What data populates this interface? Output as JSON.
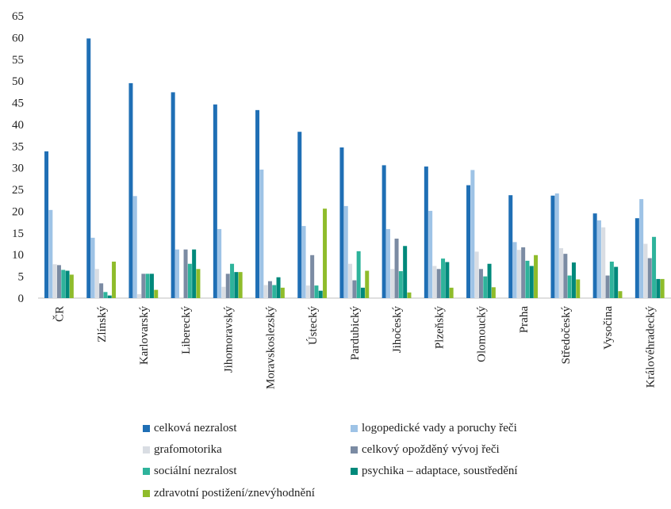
{
  "chart_data": {
    "type": "bar",
    "title": "",
    "xlabel": "",
    "ylabel": "",
    "ylim": [
      0,
      65
    ],
    "yticks": [
      0,
      5,
      10,
      15,
      20,
      25,
      30,
      35,
      40,
      45,
      50,
      55,
      60,
      65
    ],
    "grid": false,
    "legend_position": "bottom",
    "categories": [
      "ČR",
      "Zlínský",
      "Karlovarský",
      "Liberecký",
      "Jihomoravský",
      "Moravskoslezský",
      "Ústecký",
      "Pardubický",
      "Jihočeský",
      "Plzeňský",
      "Olomoucký",
      "Praha",
      "Středočeský",
      "Vysočina",
      "Královéhradecký"
    ],
    "series": [
      {
        "name": "celková nezralost",
        "color": "#1f6fb5",
        "values": [
          33.8,
          59.8,
          49.5,
          47.4,
          44.6,
          43.3,
          38.3,
          34.7,
          30.6,
          30.3,
          26.0,
          23.7,
          23.6,
          19.5,
          18.4
        ]
      },
      {
        "name": "logopedické vady a poruchy řeči",
        "color": "#9ec3e6",
        "values": [
          20.3,
          13.9,
          23.5,
          11.2,
          15.9,
          29.6,
          16.6,
          21.2,
          15.9,
          20.1,
          29.5,
          12.9,
          24.1,
          17.9,
          22.8
        ]
      },
      {
        "name": "grafomotorika",
        "color": "#d9dde3",
        "values": [
          7.8,
          6.7,
          0.9,
          0.0,
          2.6,
          3.0,
          2.9,
          7.9,
          6.7,
          7.4,
          10.7,
          11.1,
          11.5,
          16.3,
          12.5
        ]
      },
      {
        "name": "celkový opožděný vývoj řeči",
        "color": "#7b8ba3",
        "values": [
          7.6,
          3.4,
          5.6,
          11.2,
          5.6,
          3.9,
          9.9,
          4.1,
          13.7,
          6.7,
          6.7,
          11.7,
          10.2,
          5.2,
          9.2
        ]
      },
      {
        "name": "sociální nezralost",
        "color": "#2eb39b",
        "values": [
          6.5,
          1.4,
          5.6,
          7.9,
          7.9,
          3.0,
          2.9,
          10.8,
          6.2,
          9.1,
          5.0,
          8.6,
          5.2,
          8.4,
          14.1
        ]
      },
      {
        "name": "psychika – adaptace, soustředění",
        "color": "#00897b",
        "values": [
          6.3,
          0.6,
          5.6,
          11.2,
          6.0,
          4.8,
          1.7,
          2.4,
          12.0,
          8.3,
          7.9,
          7.4,
          8.2,
          7.2,
          4.4
        ]
      },
      {
        "name": "zdravotní postižení/znevýhodnění",
        "color": "#8fbc2b",
        "values": [
          5.4,
          8.4,
          1.9,
          6.7,
          6.0,
          2.4,
          20.6,
          6.3,
          1.3,
          2.4,
          2.5,
          9.9,
          4.3,
          1.6,
          4.4
        ]
      }
    ]
  }
}
